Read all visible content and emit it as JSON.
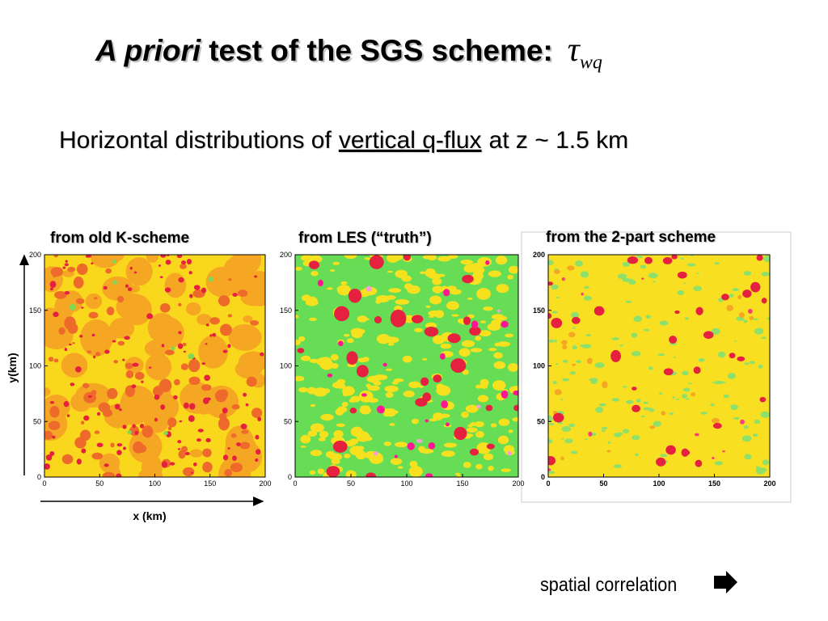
{
  "title": {
    "italic": "A priori",
    "rest": "test of the SGS scheme:",
    "symbol": "τ",
    "subscript": "wq"
  },
  "subtitle": {
    "before": "Horizontal distributions of",
    "underlined": "vertical q-flux",
    "after": "at z ~ 1.5 km"
  },
  "panels": [
    {
      "label": "from old K-scheme",
      "xticks": [
        0,
        50,
        100,
        150,
        200
      ],
      "yticks": [
        0,
        50,
        100,
        150,
        200
      ]
    },
    {
      "label": "from LES (“truth”)",
      "xticks": [
        0,
        50,
        100,
        150,
        200
      ],
      "yticks": [
        0,
        50,
        100,
        150,
        200
      ]
    },
    {
      "label": "from the 2-part scheme",
      "xticks": [
        0,
        50,
        100,
        150,
        200
      ],
      "yticks": [
        0,
        50,
        100,
        150,
        200
      ]
    }
  ],
  "y_axis_label": "y(km)",
  "x_axis_label": "x (km)",
  "footer": "spatial correlation"
}
